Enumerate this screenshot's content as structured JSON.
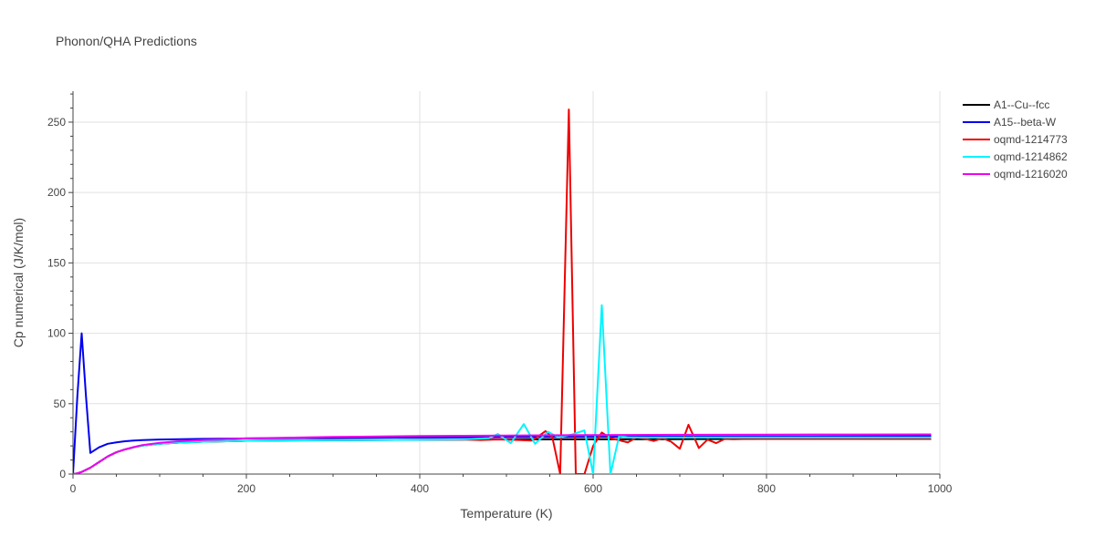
{
  "chart_data": {
    "type": "line",
    "title": "Phonon/QHA Predictions",
    "xlabel": "Temperature (K)",
    "ylabel": "Cp numerical (J/K/mol)",
    "xlim": [
      0,
      1000
    ],
    "ylim": [
      0,
      272
    ],
    "x_ticks": [
      0,
      200,
      400,
      600,
      800,
      1000
    ],
    "x_tick_labels": [
      "0",
      "200",
      "400",
      "600",
      "800",
      "1000"
    ],
    "y_ticks": [
      0,
      50,
      100,
      150,
      200,
      250
    ],
    "y_tick_labels": [
      "0",
      "50",
      "100",
      "150",
      "200",
      "250"
    ],
    "grid": true,
    "legend_position": "top-right",
    "series": [
      {
        "name": "A1--Cu--fcc",
        "color": "#000000",
        "x": [
          0,
          5,
          10,
          20,
          30,
          40,
          50,
          60,
          70,
          80,
          100,
          120,
          150,
          200,
          300,
          400,
          500,
          600,
          700,
          800,
          900,
          990
        ],
        "y": [
          0,
          0.5,
          1.5,
          4.5,
          8.5,
          12.5,
          15.5,
          17.5,
          19,
          20.2,
          21.5,
          22.3,
          23,
          23.6,
          24.1,
          24.4,
          24.6,
          24.7,
          24.8,
          24.9,
          24.9,
          25
        ]
      },
      {
        "name": "A15--beta-W",
        "color": "#0000ee",
        "x": [
          0,
          5,
          10,
          15,
          20,
          30,
          40,
          50,
          60,
          70,
          80,
          100,
          150,
          200,
          300,
          400,
          500,
          600,
          700,
          800,
          900,
          990
        ],
        "y": [
          0,
          55,
          100,
          55,
          15,
          19,
          21.5,
          22.5,
          23.3,
          23.8,
          24.1,
          24.5,
          25,
          25.3,
          25.7,
          26,
          26.2,
          26.4,
          26.6,
          26.7,
          26.8,
          26.9
        ]
      },
      {
        "name": "oqmd-1214773",
        "color": "#ee0000",
        "x": [
          0,
          5,
          10,
          20,
          30,
          40,
          50,
          60,
          70,
          80,
          100,
          120,
          150,
          200,
          300,
          400,
          450,
          470,
          490,
          510,
          530,
          545,
          553,
          562,
          572,
          580,
          590,
          600,
          610,
          620,
          630,
          640,
          650,
          660,
          670,
          680,
          690,
          700,
          710,
          722,
          732,
          742,
          752,
          762,
          772,
          800,
          850,
          900,
          990
        ],
        "y": [
          0,
          0.5,
          1.5,
          4.5,
          8.5,
          12.5,
          15.5,
          17.5,
          19,
          20.2,
          21.5,
          22.3,
          23,
          23.6,
          24.1,
          24.4,
          24.5,
          24.2,
          24.6,
          24.3,
          23.8,
          30.5,
          26,
          0,
          259,
          0,
          0,
          20,
          29.5,
          25.5,
          24,
          22.5,
          26,
          25,
          23.5,
          25.5,
          23,
          18,
          35,
          18.5,
          24.5,
          22,
          25,
          24.8,
          24.9,
          24.9,
          24.9,
          24.9,
          25
        ]
      },
      {
        "name": "oqmd-1214862",
        "color": "#00f5ff",
        "x": [
          0,
          5,
          10,
          20,
          30,
          40,
          50,
          60,
          70,
          80,
          100,
          120,
          150,
          200,
          300,
          400,
          450,
          480,
          490,
          505,
          520,
          533,
          548,
          560,
          575,
          590,
          600,
          610,
          620,
          630,
          640,
          660,
          700,
          800,
          900,
          990
        ],
        "y": [
          0,
          0.5,
          1.5,
          4.5,
          8.5,
          12.5,
          15.5,
          17.5,
          19,
          20.2,
          21.5,
          22.3,
          23,
          23.6,
          24.1,
          24.4,
          24.7,
          25.5,
          28.5,
          22,
          35.5,
          21.5,
          30,
          26,
          28,
          31,
          0,
          120,
          0,
          27,
          26,
          26,
          26,
          26,
          26,
          26
        ]
      },
      {
        "name": "oqmd-1216020",
        "color": "#ee00ee",
        "x": [
          0,
          5,
          10,
          20,
          30,
          40,
          50,
          60,
          70,
          80,
          100,
          120,
          150,
          200,
          300,
          400,
          500,
          600,
          700,
          800,
          900,
          990
        ],
        "y": [
          0,
          0.5,
          1.5,
          4.5,
          8.5,
          12.5,
          15.5,
          17.5,
          19.2,
          20.6,
          22.2,
          23.2,
          24.2,
          25.3,
          26.4,
          27,
          27.4,
          27.7,
          27.9,
          28,
          28.1,
          28.2
        ]
      }
    ]
  }
}
